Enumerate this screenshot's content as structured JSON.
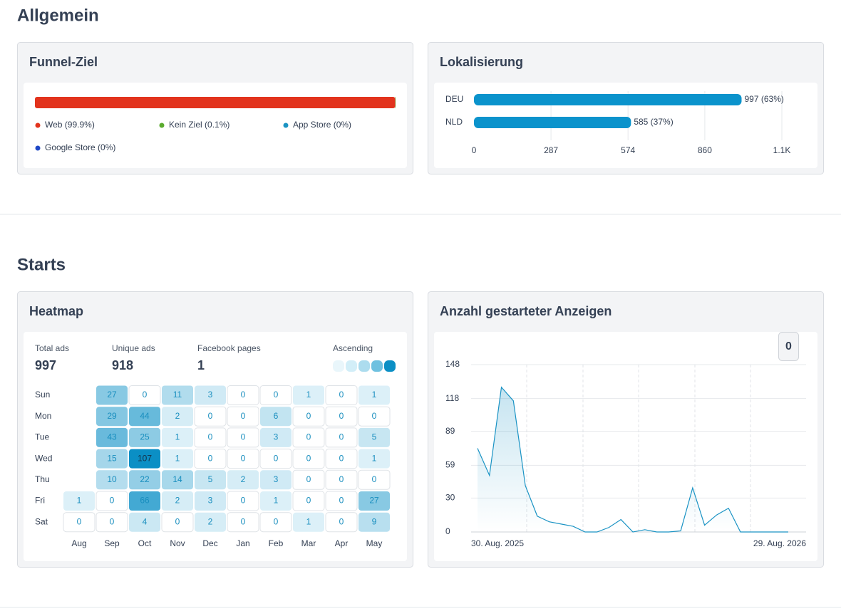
{
  "allgemein": {
    "title": "Allgemein",
    "funnel": {
      "title": "Funnel-Ziel",
      "chart": {
        "type": "stacked-bar",
        "xlim": [
          0,
          100
        ],
        "series": [
          {
            "name": "Web (99.9%)",
            "color": "#e2331d",
            "value": 99.9
          },
          {
            "name": "Kein Ziel (0.1%)",
            "color": "#5bab2f",
            "value": 0.1
          },
          {
            "name": "App Store (0%)",
            "color": "#1b93c2",
            "value": 0
          },
          {
            "name": "Google Store (0%)",
            "color": "#1f48c6",
            "value": 0
          }
        ]
      }
    },
    "localization": {
      "title": "Lokalisierung",
      "chart": {
        "type": "hbar",
        "color": "#0b93cc",
        "categories": [
          "DEU",
          "NLD"
        ],
        "values": [
          997,
          585
        ],
        "value_labels": [
          "997 (63%)",
          "585 (37%)"
        ],
        "xlim": [
          0,
          1147
        ],
        "xticks": [
          0,
          287,
          574,
          860,
          {
            "value": 1147,
            "label": "1.1K"
          }
        ],
        "grid": true
      }
    }
  },
  "starts": {
    "title": "Starts",
    "heatmap": {
      "title": "Heatmap",
      "stats": [
        {
          "label": "Total ads",
          "value": 997
        },
        {
          "label": "Unique ads",
          "value": 918
        },
        {
          "label": "Facebook pages",
          "value": 1
        }
      ],
      "legend": {
        "label": "Ascending",
        "colors": [
          "#e9f6fb",
          "#d2eef8",
          "#acdcee",
          "#6fc1e0",
          "#0b8fc5"
        ]
      },
      "chart": {
        "type": "heatmap",
        "rows": [
          "Sun",
          "Mon",
          "Tue",
          "Wed",
          "Thu",
          "Fri",
          "Sat"
        ],
        "columns": [
          "Aug",
          "Sep",
          "Oct",
          "Nov",
          "Dec",
          "Jan",
          "Feb",
          "Mar",
          "Apr",
          "May"
        ],
        "values": [
          [
            null,
            27,
            0,
            11,
            3,
            0,
            0,
            1,
            0,
            1
          ],
          [
            null,
            29,
            44,
            2,
            0,
            0,
            6,
            0,
            0,
            0
          ],
          [
            null,
            43,
            25,
            1,
            0,
            0,
            3,
            0,
            0,
            5
          ],
          [
            null,
            15,
            107,
            1,
            0,
            0,
            0,
            0,
            0,
            1
          ],
          [
            null,
            10,
            22,
            14,
            5,
            2,
            3,
            0,
            0,
            0
          ],
          [
            1,
            0,
            66,
            2,
            3,
            0,
            1,
            0,
            0,
            27
          ],
          [
            0,
            0,
            4,
            0,
            2,
            0,
            0,
            1,
            0,
            9
          ]
        ]
      }
    },
    "line": {
      "title": "Anzahl gestarteter Anzeigen",
      "button": "0",
      "chart": {
        "type": "line",
        "color": "#1a93c4",
        "categories": [
          "30. Aug. 2025",
          null,
          null,
          null,
          null,
          null,
          null,
          null,
          null,
          null,
          null,
          null,
          null,
          null,
          null,
          null,
          null,
          null,
          null,
          null,
          null,
          null,
          null,
          null,
          null,
          null,
          "29. Aug. 2026"
        ],
        "values": [
          74,
          50,
          128,
          116,
          41,
          14,
          9,
          7,
          5,
          0,
          0,
          4,
          11,
          0,
          2,
          0,
          0,
          1,
          39,
          6,
          15,
          21,
          0,
          0,
          0,
          0,
          0
        ],
        "ylim": [
          0,
          148
        ],
        "yticks": [
          0,
          30,
          59,
          89,
          118,
          148
        ],
        "grid": true
      }
    }
  }
}
